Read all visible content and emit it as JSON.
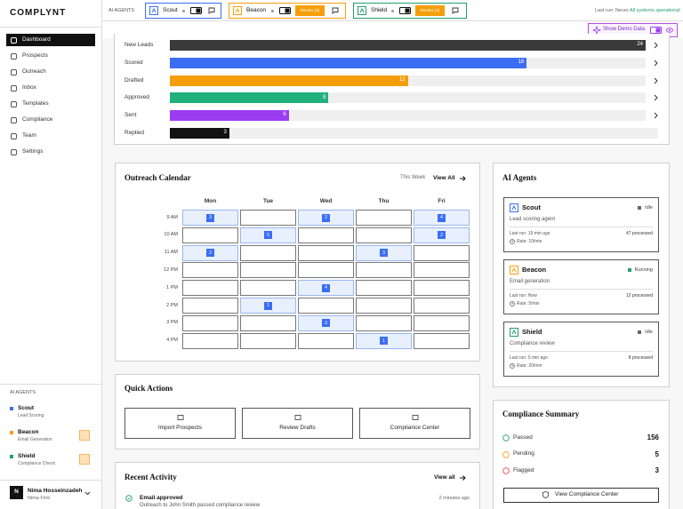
{
  "sidebar": {
    "logo": "COMPLYNT",
    "nav": [
      "Dashboard",
      "Prospects",
      "Outreach",
      "Inbox",
      "Templates",
      "Compliance",
      "Team",
      "Settings"
    ],
    "active": 0,
    "agents_label": "AI AGENTS",
    "agents": [
      {
        "name": "Scout",
        "role": "Lead Scoring",
        "color": "#3b6ef5",
        "review": false
      },
      {
        "name": "Beacon",
        "role": "Email Generation",
        "color": "#f59e0b",
        "review": true
      },
      {
        "name": "Shield",
        "role": "Compliance Check",
        "color": "#22a06b",
        "review": true
      }
    ],
    "user": {
      "initial": "N",
      "name": "Nima Hosseinzadeh",
      "org": "Nima Firm"
    }
  },
  "topbar": {
    "label": "AI AGENTS",
    "agents": [
      {
        "name": "Scout",
        "color": "#3b6ef5"
      },
      {
        "name": "Beacon",
        "color": "#f59e0b",
        "badge": "Review (3)"
      },
      {
        "name": "Shield",
        "color": "#22a06b",
        "badge": "Review (3)"
      }
    ],
    "last_run": "Last run: Never",
    "status": "All systems operational",
    "demo_button": "Show Demo Data"
  },
  "pipeline": {
    "xlim": [
      0,
      24
    ],
    "stages": [
      {
        "label": "New Leads",
        "value": 24,
        "color": "#3a3a3a"
      },
      {
        "label": "Scored",
        "value": 18,
        "color": "#3b6ef5"
      },
      {
        "label": "Drafted",
        "value": 12,
        "color": "#f59e0b"
      },
      {
        "label": "Approved",
        "value": 8,
        "color": "#22b07d"
      },
      {
        "label": "Sent",
        "value": 6,
        "color": "#9b3cf0"
      },
      {
        "label": "Replied",
        "value": 3,
        "color": "#111111"
      }
    ]
  },
  "calendar": {
    "title": "Outreach Calendar",
    "range": "This Week",
    "link": "View All",
    "days": [
      "Mon",
      "Tue",
      "Wed",
      "Thu",
      "Fri"
    ],
    "rows": [
      {
        "time": "9 AM",
        "cells": [
          3,
          null,
          2,
          null,
          4
        ]
      },
      {
        "time": "10 AM",
        "cells": [
          null,
          5,
          null,
          null,
          2
        ]
      },
      {
        "time": "11 AM",
        "cells": [
          2,
          null,
          null,
          3,
          null
        ]
      },
      {
        "time": "12 PM",
        "cells": [
          null,
          null,
          null,
          null,
          null
        ]
      },
      {
        "time": "1 PM",
        "cells": [
          null,
          null,
          4,
          null,
          null
        ]
      },
      {
        "time": "2 PM",
        "cells": [
          null,
          1,
          null,
          null,
          null
        ]
      },
      {
        "time": "3 PM",
        "cells": [
          null,
          null,
          3,
          null,
          null
        ]
      },
      {
        "time": "4 PM",
        "cells": [
          null,
          null,
          null,
          1,
          null
        ]
      }
    ]
  },
  "agents_panel": {
    "title": "AI Agents",
    "agents": [
      {
        "name": "Scout",
        "color": "#3b6ef5",
        "status": "Idle",
        "status_color": "#666666",
        "description": "Lead scoring agent",
        "last_run": "Last run: 15 min ago",
        "processed": "47 processed",
        "rate": "Rate: 10/min"
      },
      {
        "name": "Beacon",
        "color": "#f59e0b",
        "status": "Running",
        "status_color": "#22a06b",
        "description": "Email generation",
        "last_run": "Last run: Now",
        "processed": "12 processed",
        "rate": "Rate: 5/min"
      },
      {
        "name": "Shield",
        "color": "#22a06b",
        "status": "Idle",
        "status_color": "#666666",
        "description": "Compliance review",
        "last_run": "Last run: 5 min ago",
        "processed": "8 processed",
        "rate": "Rate: 20/min"
      }
    ]
  },
  "quick_actions": {
    "title": "Quick Actions",
    "actions": [
      "Import Prospects",
      "Review Drafts",
      "Compliance Center"
    ]
  },
  "compliance": {
    "title": "Compliance Summary",
    "items": [
      {
        "label": "Passed",
        "value": 156,
        "color": "#22a06b"
      },
      {
        "label": "Pending",
        "value": 5,
        "color": "#f59e0b"
      },
      {
        "label": "Flagged",
        "value": 3,
        "color": "#e5484d"
      }
    ],
    "button": "View Compliance Center"
  },
  "activity": {
    "title": "Recent Activity",
    "link": "View all",
    "items": [
      {
        "title": "Email approved",
        "time": "2 minutes ago",
        "detail": "Outreach to John Smith passed compliance review"
      }
    ]
  }
}
